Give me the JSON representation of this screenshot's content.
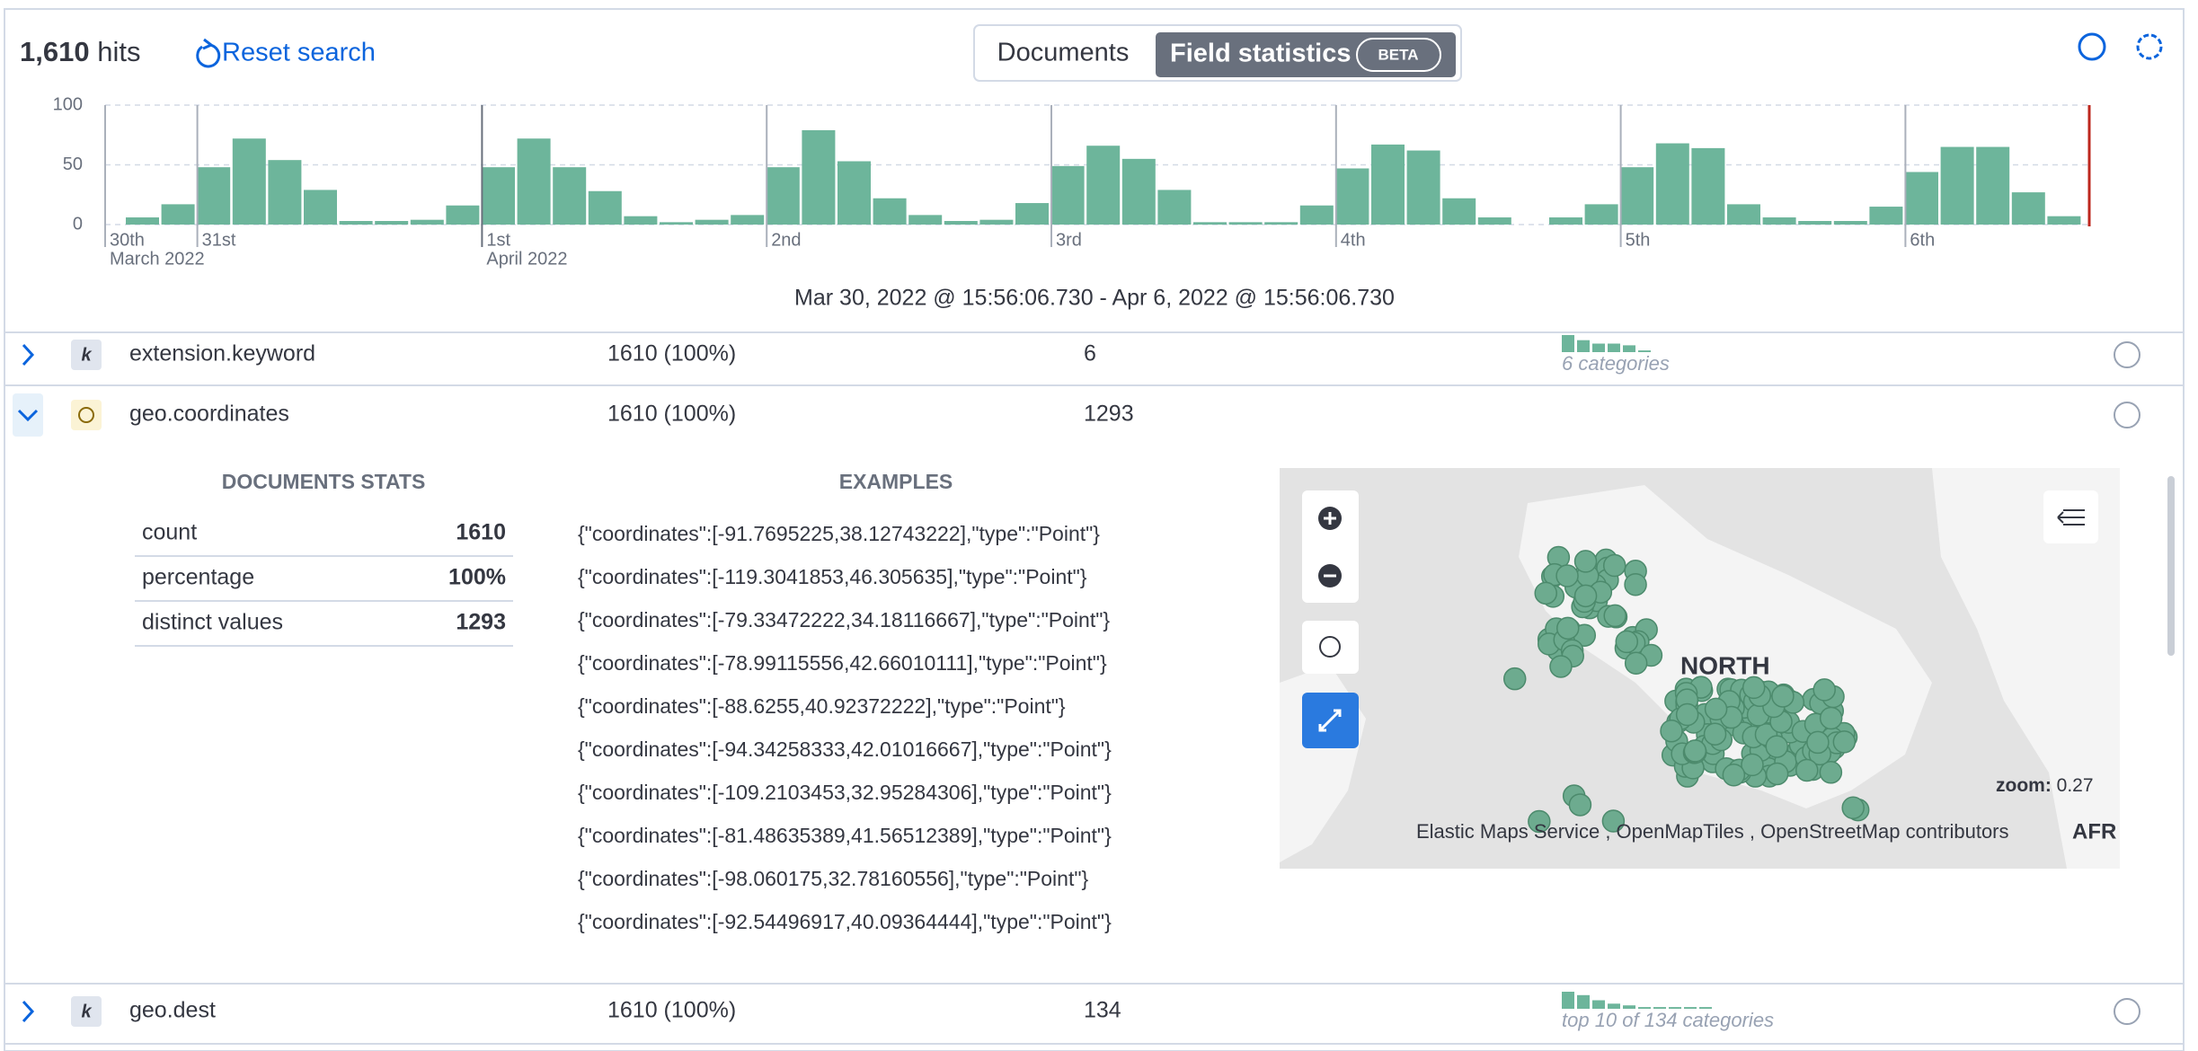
{
  "header": {
    "hits_count": "1,610",
    "hits_label": "hits",
    "reset": "Reset search",
    "tabs": [
      "Documents",
      "Field statistics"
    ],
    "badge": "BETA"
  },
  "histogram": {
    "type": "bar",
    "ylim": [
      0,
      100
    ],
    "yticks": [
      0,
      50,
      100
    ],
    "color": "#6db59b",
    "values": [
      6,
      17,
      48,
      72,
      54,
      29,
      3,
      3,
      4,
      16,
      48,
      72,
      48,
      28,
      7,
      2,
      4,
      8,
      48,
      79,
      53,
      22,
      8,
      3,
      4,
      18,
      49,
      66,
      55,
      29,
      2,
      2,
      2,
      16,
      47,
      67,
      62,
      22,
      6,
      0,
      6,
      17,
      48,
      68,
      64,
      17,
      6,
      3,
      3,
      15,
      44,
      65,
      65,
      27,
      7
    ],
    "xticks": [
      {
        "label": "30th",
        "sublabel": "March 2022"
      },
      {
        "label": "31st"
      },
      {
        "label": "1st",
        "sublabel": "April 2022"
      },
      {
        "label": "2nd"
      },
      {
        "label": "3rd"
      },
      {
        "label": "4th"
      },
      {
        "label": "5th"
      },
      {
        "label": "6th"
      }
    ],
    "time_range": "Mar 30, 2022 @ 15:56:06.730 - Apr 6, 2022 @ 15:56:06.730"
  },
  "fields": [
    {
      "type": "k",
      "name": "extension.keyword",
      "documents": "1610 (100%)",
      "distinct": "6",
      "distribution": [
        10,
        7,
        5,
        5,
        4,
        1
      ],
      "distribution_label": "6 categories"
    },
    {
      "name": "geo.coordinates",
      "documents": "1610 (100%)",
      "distinct": "1293"
    },
    {
      "type": "k",
      "name": "geo.dest",
      "documents": "1610 (100%)",
      "distinct": "134",
      "distribution": [
        10,
        8,
        5,
        3,
        2,
        1,
        1,
        1,
        1,
        1
      ],
      "distribution_label": "top 10 of 134 categories"
    }
  ],
  "expanded": {
    "stats_title": "DOCUMENTS STATS",
    "stats": [
      {
        "label": "count",
        "value": "1610"
      },
      {
        "label": "percentage",
        "value": "100%"
      },
      {
        "label": "distinct values",
        "value": "1293"
      }
    ],
    "examples_title": "EXAMPLES",
    "examples": [
      "{\"coordinates\":[-91.7695225,38.12743222],\"type\":\"Point\"}",
      "{\"coordinates\":[-119.3041853,46.305635],\"type\":\"Point\"}",
      "{\"coordinates\":[-79.33472222,34.18116667],\"type\":\"Point\"}",
      "{\"coordinates\":[-78.99115556,42.66010111],\"type\":\"Point\"}",
      "{\"coordinates\":[-88.6255,40.92372222],\"type\":\"Point\"}",
      "{\"coordinates\":[-94.34258333,42.01016667],\"type\":\"Point\"}",
      "{\"coordinates\":[-109.2103453,32.95284306],\"type\":\"Point\"}",
      "{\"coordinates\":[-81.48635389,41.56512389],\"type\":\"Point\"}",
      "{\"coordinates\":[-98.060175,32.78160556],\"type\":\"Point\"}",
      "{\"coordinates\":[-92.54496917,40.09364444],\"type\":\"Point\"}"
    ],
    "map": {
      "label": "NORTH",
      "zoom_label": "zoom:",
      "zoom": "0.27",
      "attribution": [
        "Elastic Maps Service",
        ", OpenMapTiles",
        ", OpenStreetMap contributors"
      ],
      "edge_label": "AFR"
    }
  }
}
